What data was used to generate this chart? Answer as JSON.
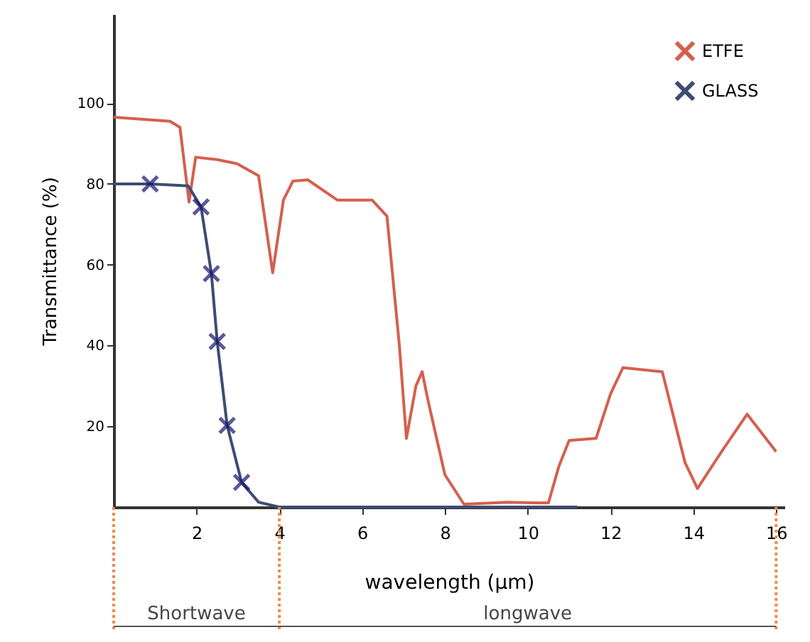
{
  "chart_data": {
    "type": "line",
    "xlabel": "wavelength (µm)",
    "ylabel": "Transmittance (%)",
    "xlim": [
      0,
      16.2
    ],
    "ylim": [
      0,
      122
    ],
    "xticks": [
      2,
      4,
      6,
      8,
      10,
      12,
      14,
      16
    ],
    "yticks": [
      20,
      40,
      60,
      80,
      100
    ],
    "grid": false,
    "legend": "top right",
    "marker": "none",
    "series": [
      {
        "name": "ETFE",
        "color": "#d4604e",
        "x": [
          0,
          1.36,
          1.6,
          1.82,
          1.98,
          2.5,
          2.98,
          3.5,
          3.84,
          4.1,
          4.33,
          4.69,
          5.4,
          6.24,
          6.6,
          6.9,
          7.07,
          7.3,
          7.45,
          7.6,
          8.0,
          8.46,
          9.5,
          10.5,
          10.75,
          11.0,
          11.65,
          12.0,
          12.3,
          13.25,
          13.8,
          14.1,
          14.7,
          15.3,
          16.0
        ],
        "values": [
          96.5,
          95.5,
          94,
          75.5,
          86.6,
          86,
          85,
          82,
          58,
          76,
          80.7,
          81,
          76,
          76,
          72,
          40,
          17,
          30,
          33.5,
          26,
          8,
          0.7,
          1.2,
          1,
          10,
          16.5,
          17,
          28,
          34.5,
          33.5,
          11,
          4.6,
          14,
          23,
          13.7
        ]
      },
      {
        "name": "GLASS",
        "color": "#3d4c74",
        "x": [
          0,
          0.88,
          1.8,
          2.11,
          2.36,
          2.5,
          2.74,
          3.09,
          3.5,
          4.0,
          11.2
        ],
        "values": [
          80,
          80,
          79.5,
          74.3,
          57.8,
          41,
          20.2,
          6.1,
          1.2,
          0,
          0
        ]
      },
      {
        "color": "#14146e",
        "type": "scatter",
        "marker": "cross",
        "x": [
          0.88,
          2.11,
          2.36,
          2.5,
          2.74,
          3.09
        ],
        "values": [
          80,
          74.3,
          57.8,
          41,
          20.2,
          6.1
        ]
      }
    ],
    "annotations": [
      "Shortwave",
      "longwave"
    ]
  }
}
